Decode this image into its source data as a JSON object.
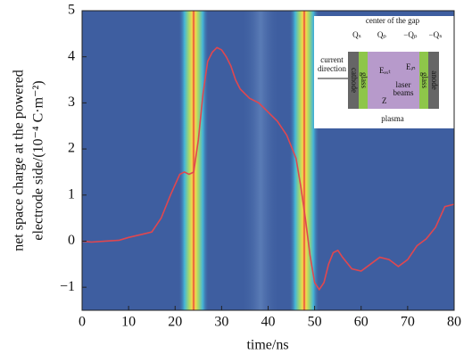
{
  "chart_data": {
    "type": "line",
    "xlabel": "time/ns",
    "ylabel": [
      "net space charge at the powered",
      "electrode side/(10⁻⁴ C·m⁻²)"
    ],
    "x": [
      0,
      2,
      5,
      8,
      10,
      13,
      15,
      17,
      19,
      21,
      22,
      23,
      24,
      25,
      26,
      27,
      28,
      29,
      30,
      31,
      32,
      33,
      34,
      35,
      36,
      38,
      40,
      42,
      44,
      46,
      47,
      48,
      49,
      50,
      51,
      52,
      53,
      54,
      55,
      56,
      58,
      60,
      62,
      64,
      66,
      68,
      70,
      72,
      74,
      76,
      78,
      80
    ],
    "values": [
      0,
      -0.02,
      0,
      0.02,
      0.08,
      0.15,
      0.2,
      0.5,
      1.0,
      1.45,
      1.5,
      1.45,
      1.5,
      2.2,
      3.2,
      3.9,
      4.1,
      4.2,
      4.15,
      4.0,
      3.8,
      3.5,
      3.3,
      3.2,
      3.1,
      3.0,
      2.8,
      2.6,
      2.3,
      1.8,
      1.2,
      0.5,
      -0.3,
      -0.9,
      -1.05,
      -0.9,
      -0.5,
      -0.25,
      -0.2,
      -0.35,
      -0.6,
      -0.65,
      -0.5,
      -0.35,
      -0.4,
      -0.55,
      -0.4,
      -0.1,
      0.05,
      0.3,
      0.75,
      0.8
    ],
    "color": "#e0474f",
    "xlim": [
      0,
      80
    ],
    "xticks": [
      0,
      10,
      20,
      30,
      40,
      50,
      60,
      70,
      80
    ],
    "ylim": [
      -1.5,
      5
    ],
    "yticks": [
      {
        "value": -1,
        "label": "−1"
      },
      0,
      1,
      2,
      3,
      4,
      5
    ],
    "inset": {
      "center": "center of the gap",
      "qs": "Qₛ",
      "qp": "Qₚ",
      "mqp": "−Qₚ",
      "mqs": "−Qₛ",
      "current1": "current",
      "current2": "direction",
      "cathode": "cathode",
      "glass1": "glass",
      "eext": "Eₑₓₜ",
      "ein": "Eᵢₙ",
      "laser1": "laser",
      "laser2": "beams",
      "glass2": "glass",
      "anode": "anode",
      "z": "Z",
      "plasma": "plasma"
    }
  }
}
